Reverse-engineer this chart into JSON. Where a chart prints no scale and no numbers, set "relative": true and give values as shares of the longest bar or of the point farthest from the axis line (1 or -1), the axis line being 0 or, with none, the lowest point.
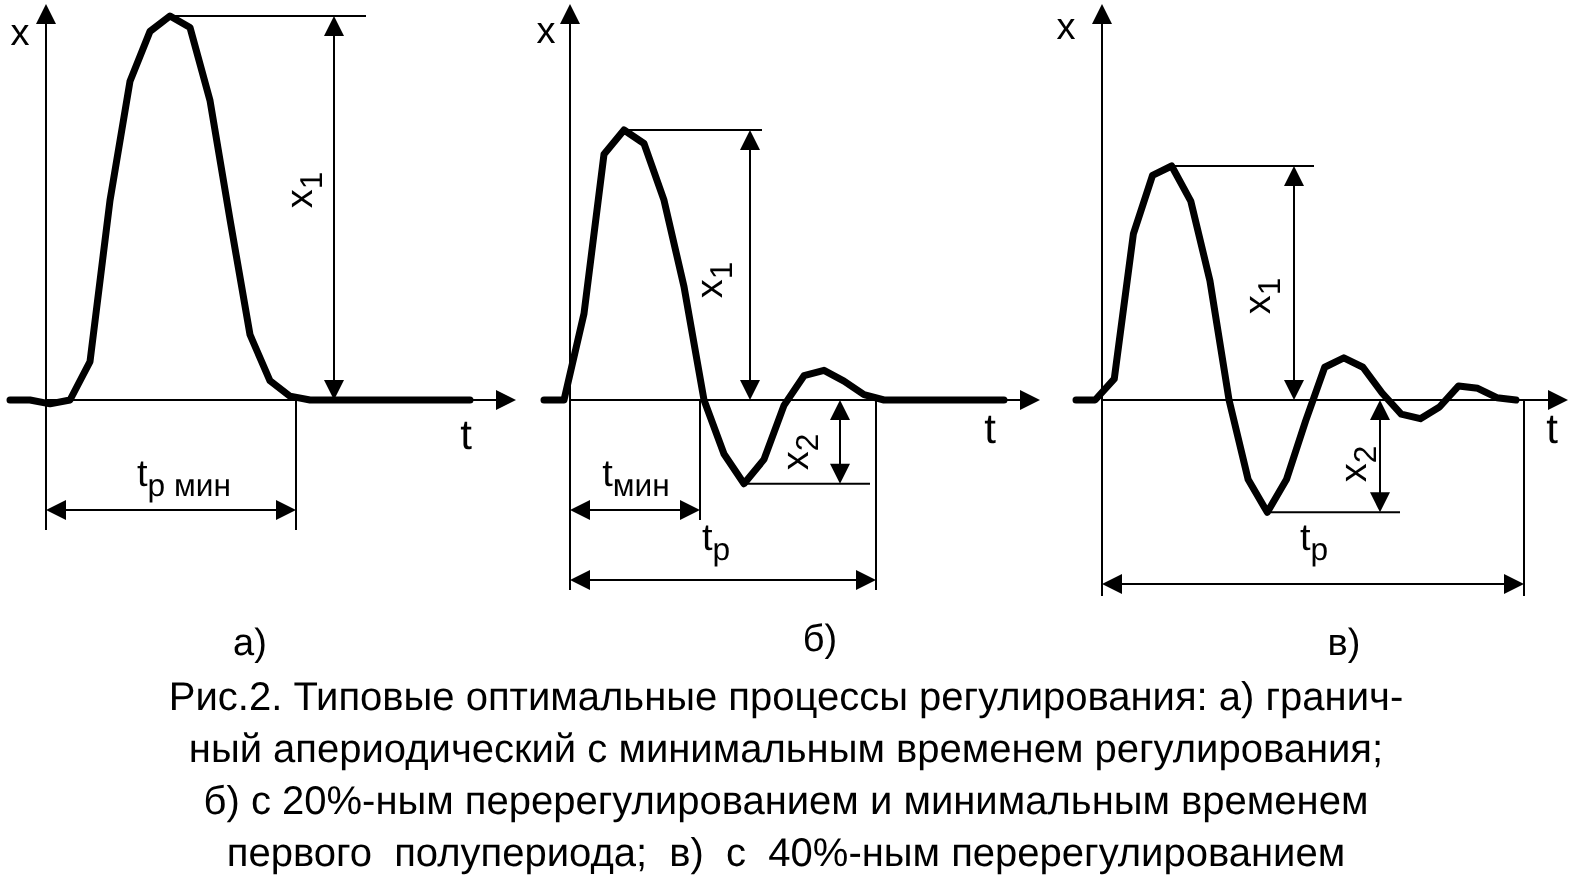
{
  "chart_data": [
    {
      "type": "line",
      "title": "а)",
      "xlabel": "t",
      "ylabel": "x",
      "relative": true,
      "color": "#000000",
      "categories": [
        null,
        null,
        null,
        null,
        null,
        null,
        null,
        null,
        null,
        null,
        null,
        null,
        null,
        null,
        null,
        null,
        null,
        null,
        null,
        null,
        null,
        null,
        null,
        null
      ],
      "values": [
        0,
        0,
        -0.01,
        0,
        0.1,
        0.52,
        0.83,
        0.96,
        1,
        0.97,
        0.78,
        0.47,
        0.17,
        0.05,
        0.01,
        0,
        0,
        0,
        0,
        0,
        0,
        0,
        0,
        0
      ],
      "annotations": [
        "x$_{1}$",
        "t$_{р мин}$"
      ]
    },
    {
      "type": "line",
      "title": "б)",
      "xlabel": "t",
      "ylabel": "x",
      "relative": true,
      "color": "#000000",
      "categories": [
        null,
        null,
        null,
        null,
        null,
        null,
        null,
        null,
        null,
        null,
        null,
        null,
        null,
        null,
        null,
        null,
        null,
        null,
        null,
        null,
        null,
        null,
        null,
        null
      ],
      "values": [
        0,
        0,
        0.32,
        0.91,
        1,
        0.95,
        0.74,
        0.42,
        0,
        -0.2,
        -0.31,
        -0.22,
        -0.02,
        0.09,
        0.11,
        0.07,
        0.02,
        0,
        0,
        0,
        0,
        0,
        0,
        0
      ],
      "annotations": [
        "x$_{1}$",
        "x$_{2}$",
        "t$_{мин}$",
        "t$_{р}$"
      ]
    },
    {
      "type": "line",
      "title": "в)",
      "xlabel": "t",
      "ylabel": "x",
      "relative": true,
      "color": "#000000",
      "categories": [
        null,
        null,
        null,
        null,
        null,
        null,
        null,
        null,
        null,
        null,
        null,
        null,
        null,
        null,
        null,
        null,
        null,
        null,
        null,
        null,
        null,
        null,
        null,
        null
      ],
      "values": [
        0,
        0,
        0.09,
        0.71,
        0.96,
        1,
        0.85,
        0.51,
        0,
        -0.34,
        -0.48,
        -0.34,
        -0.09,
        0.14,
        0.18,
        0.14,
        0.03,
        -0.06,
        -0.08,
        -0.03,
        0.06,
        0.05,
        0.01,
        0
      ],
      "annotations": [
        "x$_{1}$",
        "x$_{2}$",
        "t$_{р}$"
      ]
    },
    {
      "type": "other",
      "annotations": [
        "Рис.2. Типовые оптимальные процессы регулирования: а) гранич-",
        "ный апериодический с минимальным временем регулирования;",
        "б) с 20%-ным перерегулированием и минимальным временем",
        "первого  полупериода;  в)  с  40%-ным перерегулированием"
      ]
    }
  ]
}
